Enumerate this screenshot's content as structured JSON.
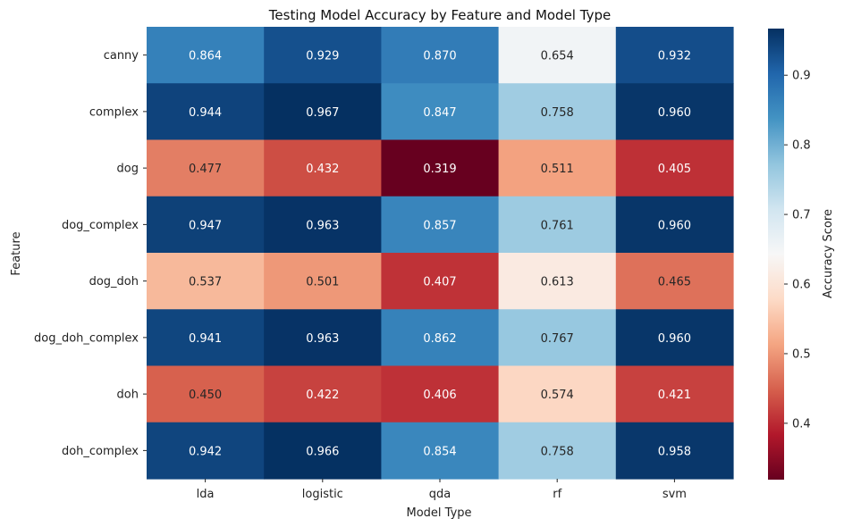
{
  "chart_data": {
    "type": "heatmap",
    "title": "Testing Model Accuracy by Feature and Model Type",
    "xlabel": "Model Type",
    "ylabel": "Feature",
    "colorbar_label": "Accuracy Score",
    "x_categories": [
      "lda",
      "logistic",
      "qda",
      "rf",
      "svm"
    ],
    "y_categories": [
      "canny",
      "complex",
      "dog",
      "dog_complex",
      "dog_doh",
      "dog_doh_complex",
      "doh",
      "doh_complex"
    ],
    "values": [
      [
        0.864,
        0.929,
        0.87,
        0.654,
        0.932
      ],
      [
        0.944,
        0.967,
        0.847,
        0.758,
        0.96
      ],
      [
        0.477,
        0.432,
        0.319,
        0.511,
        0.405
      ],
      [
        0.947,
        0.963,
        0.857,
        0.761,
        0.96
      ],
      [
        0.537,
        0.501,
        0.407,
        0.613,
        0.465
      ],
      [
        0.941,
        0.963,
        0.862,
        0.767,
        0.96
      ],
      [
        0.45,
        0.422,
        0.406,
        0.574,
        0.421
      ],
      [
        0.942,
        0.966,
        0.854,
        0.758,
        0.958
      ]
    ],
    "colormap": "RdBu",
    "color_range": [
      0.319,
      0.967
    ],
    "colorbar_ticks": [
      "0.4",
      "0.5",
      "0.6",
      "0.7",
      "0.8",
      "0.9"
    ],
    "annotation_format": "3 decimals"
  }
}
